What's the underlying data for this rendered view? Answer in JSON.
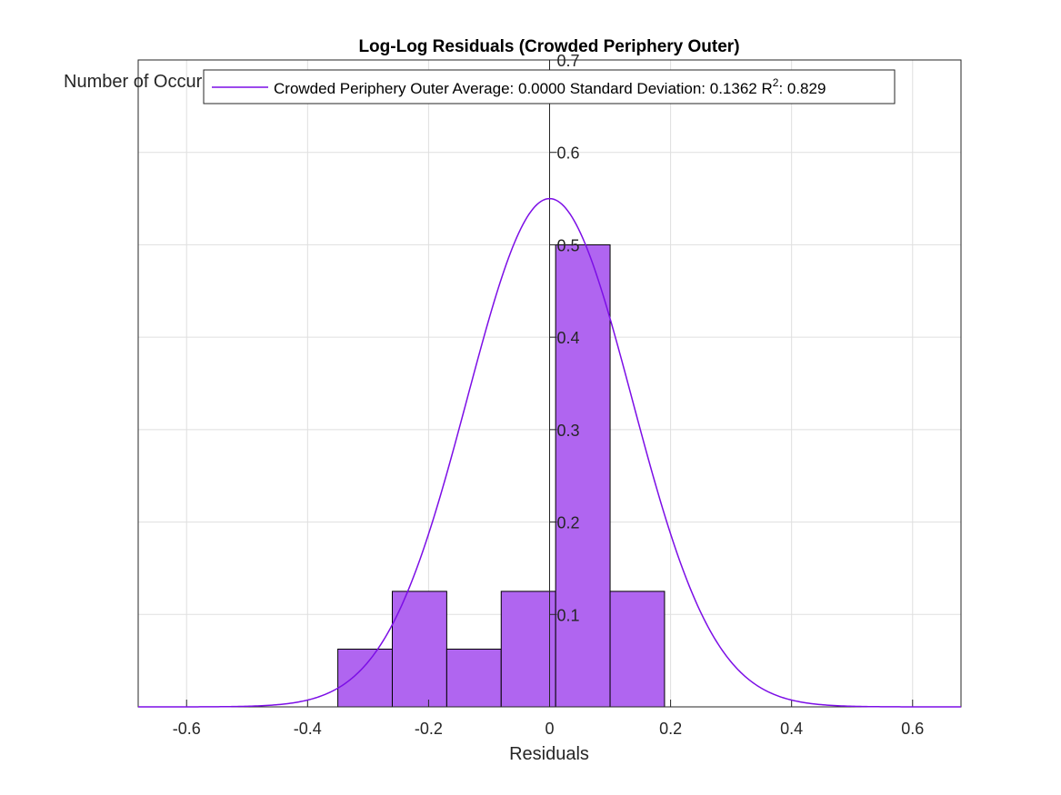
{
  "chart_data": {
    "type": "bar",
    "title": "Log-Log Residuals (Crowded Periphery Outer)",
    "xlabel": "Residuals",
    "ylabel": "Number of Occurrences",
    "xlim": [
      -0.68,
      0.68
    ],
    "ylim": [
      0,
      0.7
    ],
    "x_ticks": [
      -0.6,
      -0.4,
      -0.2,
      0,
      0.2,
      0.4,
      0.6
    ],
    "x_tick_labels": [
      "-0.6",
      "-0.4",
      "-0.2",
      "0",
      "0.2",
      "0.4",
      "0.6"
    ],
    "y_ticks": [
      0.1,
      0.2,
      0.3,
      0.4,
      0.5,
      0.6,
      0.7
    ],
    "y_tick_labels": [
      "0.1",
      "0.2",
      "0.3",
      "0.4",
      "0.5",
      "0.6",
      "0.7"
    ],
    "grid": true,
    "histogram": {
      "bin_edges": [
        -0.35,
        -0.26,
        -0.17,
        -0.08,
        0.01,
        0.1,
        0.19
      ],
      "values": [
        0.0625,
        0.125,
        0.0625,
        0.125,
        0.5,
        0.125
      ],
      "color": "#b065f0",
      "edge_color": "#000000"
    },
    "series": [
      {
        "type": "line",
        "curve": "normal",
        "mean": 0.0,
        "std": 0.1362,
        "peak": 0.55,
        "color": "#7c0ee6"
      }
    ],
    "legend": {
      "position": "top",
      "label_prefix": "Crowded Periphery Outer Average: 0.0000 Standard Deviation: 0.1362 R",
      "label_superscript": "2",
      "label_suffix": ": 0.829"
    }
  }
}
